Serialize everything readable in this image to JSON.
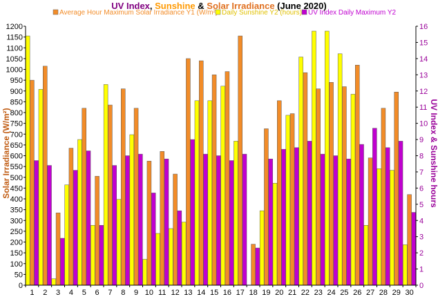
{
  "title": {
    "part1": "UV Index",
    "sep1": ", ",
    "part2": "Sunshine",
    "sep2": " & ",
    "part3": "Solar Irradiance",
    "part4": "  (June 2020)"
  },
  "colors": {
    "irradiance": "#f28c28",
    "sunshine": "#ffff00",
    "uv": "#c000d0",
    "title_uv": "#800080",
    "title_sun": "#ff9900",
    "title_irr": "#e07020",
    "title_rest": "#000000",
    "left_axis_label": "#c05a10",
    "right_axis_label": "#990099"
  },
  "chart_data": {
    "type": "bar",
    "title": "UV Index, Sunshine & Solar Irradiance  (June 2020)",
    "categories": [
      "1",
      "2",
      "3",
      "4",
      "5",
      "6",
      "7",
      "8",
      "9",
      "10",
      "11",
      "12",
      "13",
      "14",
      "15",
      "16",
      "17",
      "18",
      "19",
      "20",
      "21",
      "22",
      "23",
      "24",
      "25",
      "26",
      "27",
      "28",
      "29",
      "30"
    ],
    "ylabel": "Solar Irradiance (W/m²)",
    "y2label_part1": "UV Index",
    "y2label_sep": " & ",
    "y2label_part2": "Sunshine hours",
    "ylim": [
      0,
      1200
    ],
    "y2lim": [
      0,
      16
    ],
    "yticks": [
      "0",
      "50",
      "100",
      "150",
      "200",
      "250",
      "300",
      "350",
      "400",
      "450",
      "500",
      "550",
      "600",
      "650",
      "700",
      "750",
      "800",
      "850",
      "900",
      "950",
      "1000",
      "1050",
      "1100",
      "1150",
      "1200"
    ],
    "y2ticks": [
      "0",
      "1",
      "2",
      "3",
      "4",
      "5",
      "6",
      "7",
      "8",
      "9",
      "10",
      "11",
      "12",
      "13",
      "14",
      "15",
      "16"
    ],
    "grid": false,
    "legend_position": "top",
    "series": [
      {
        "name": "Daily Sunshine Y2 (hours)",
        "axis": "y2",
        "values": [
          15.4,
          12.1,
          0.4,
          6.2,
          9.0,
          3.7,
          12.4,
          5.3,
          9.3,
          1.6,
          3.2,
          3.5,
          3.9,
          11.4,
          11.4,
          12.3,
          8.9,
          0,
          4.6,
          6.3,
          10.5,
          14.1,
          15.7,
          15.7,
          14.3,
          11.8,
          3.7,
          7.2,
          7.1,
          2.5
        ]
      },
      {
        "name": "Average Hour Maximum Solar Irradiance Y1 (W/m²)",
        "axis": "y1",
        "values": [
          950,
          1015,
          335,
          635,
          820,
          505,
          835,
          910,
          820,
          575,
          620,
          515,
          1050,
          1040,
          975,
          990,
          1155,
          190,
          725,
          855,
          795,
          985,
          910,
          940,
          920,
          1020,
          590,
          820,
          895,
          420
        ]
      },
      {
        "name": "UV Index Daily Maximum Y2",
        "axis": "y2",
        "values": [
          7.7,
          7.4,
          2.9,
          7.1,
          8.3,
          3.7,
          7.4,
          8.0,
          8.1,
          5.7,
          7.8,
          4.6,
          9.0,
          8.1,
          8.0,
          7.7,
          8.1,
          2.3,
          7.8,
          8.4,
          8.5,
          8.9,
          8.1,
          8.0,
          7.8,
          8.7,
          9.7,
          8.5,
          8.9,
          4.5
        ]
      }
    ]
  }
}
